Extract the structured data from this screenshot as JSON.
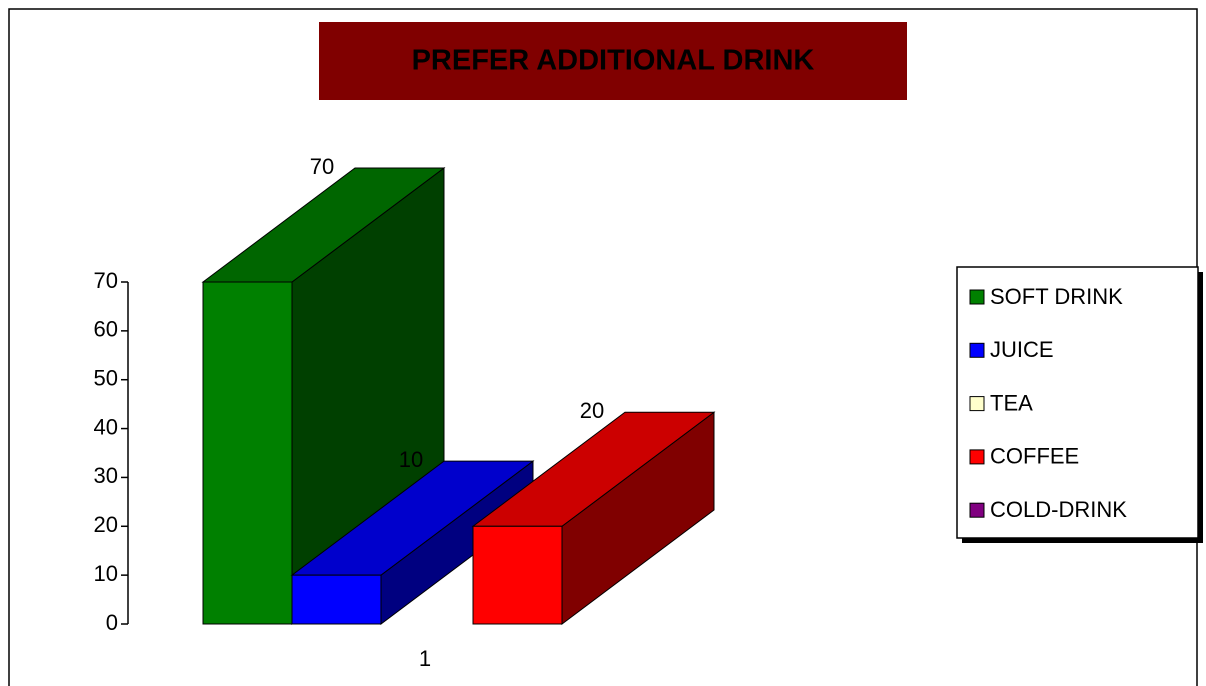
{
  "chart_data": {
    "type": "bar3d",
    "title": "PREFER ADDITIONAL DRINK",
    "categories": [
      "1"
    ],
    "series": [
      {
        "name": "SOFT DRINK",
        "color": "#008000",
        "values": [
          70
        ]
      },
      {
        "name": "JUICE",
        "color": "#0000ff",
        "values": [
          10
        ]
      },
      {
        "name": "TEA",
        "color": "#ffffcc",
        "values": [
          null
        ]
      },
      {
        "name": "COFFEE",
        "color": "#ff0000",
        "values": [
          20
        ]
      },
      {
        "name": "COLD-DRINK",
        "color": "#800080",
        "values": [
          null
        ]
      }
    ],
    "ylim": [
      0,
      70
    ],
    "yticks": [
      0,
      10,
      20,
      30,
      40,
      50,
      60,
      70
    ],
    "legend": "right",
    "title_background": "#800000"
  }
}
